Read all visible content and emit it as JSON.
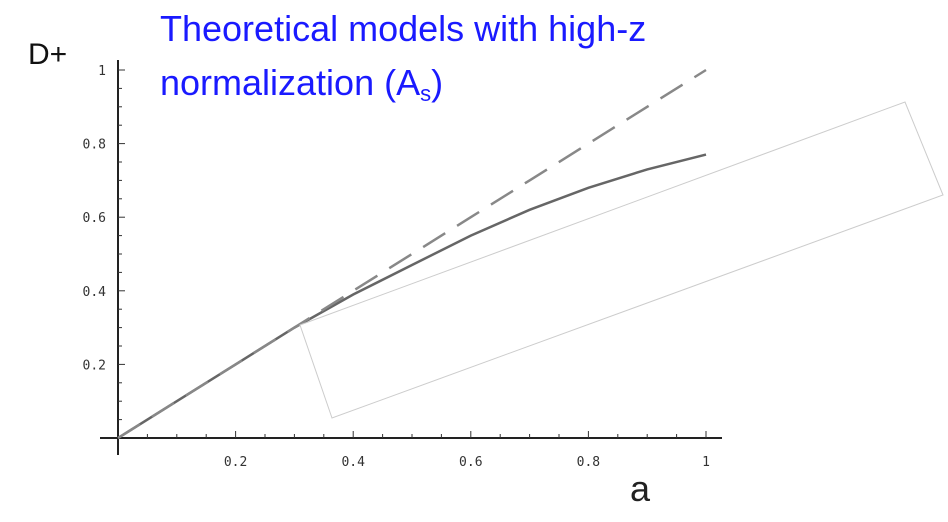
{
  "title": {
    "line1": "Theoretical models with high-z",
    "line2_main": "normalization (A",
    "line2_sub": "s",
    "line2_end": ")"
  },
  "chart_data": {
    "type": "line",
    "xlabel": "a",
    "ylabel": "D+",
    "xlim": [
      0,
      1
    ],
    "ylim": [
      0,
      1
    ],
    "x_ticks": [
      "0.2",
      "0.4",
      "0.6",
      "0.8",
      "1"
    ],
    "y_ticks": [
      "0.2",
      "0.4",
      "0.6",
      "0.8",
      "1"
    ],
    "series": [
      {
        "style": "solid",
        "color": "#666666",
        "x": [
          0,
          0.1,
          0.2,
          0.3,
          0.4,
          0.5,
          0.6,
          0.7,
          0.8,
          0.9,
          1.0
        ],
        "y": [
          0,
          0.1,
          0.2,
          0.3,
          0.39,
          0.47,
          0.55,
          0.62,
          0.68,
          0.73,
          0.77
        ]
      },
      {
        "style": "dashed",
        "color": "#888888",
        "x": [
          0,
          0.1,
          0.2,
          0.3,
          0.4,
          0.5,
          0.6,
          0.7,
          0.8,
          0.9,
          1.0
        ],
        "y": [
          0,
          0.1,
          0.2,
          0.3,
          0.4,
          0.5,
          0.6,
          0.7,
          0.8,
          0.9,
          1.0
        ]
      }
    ]
  }
}
